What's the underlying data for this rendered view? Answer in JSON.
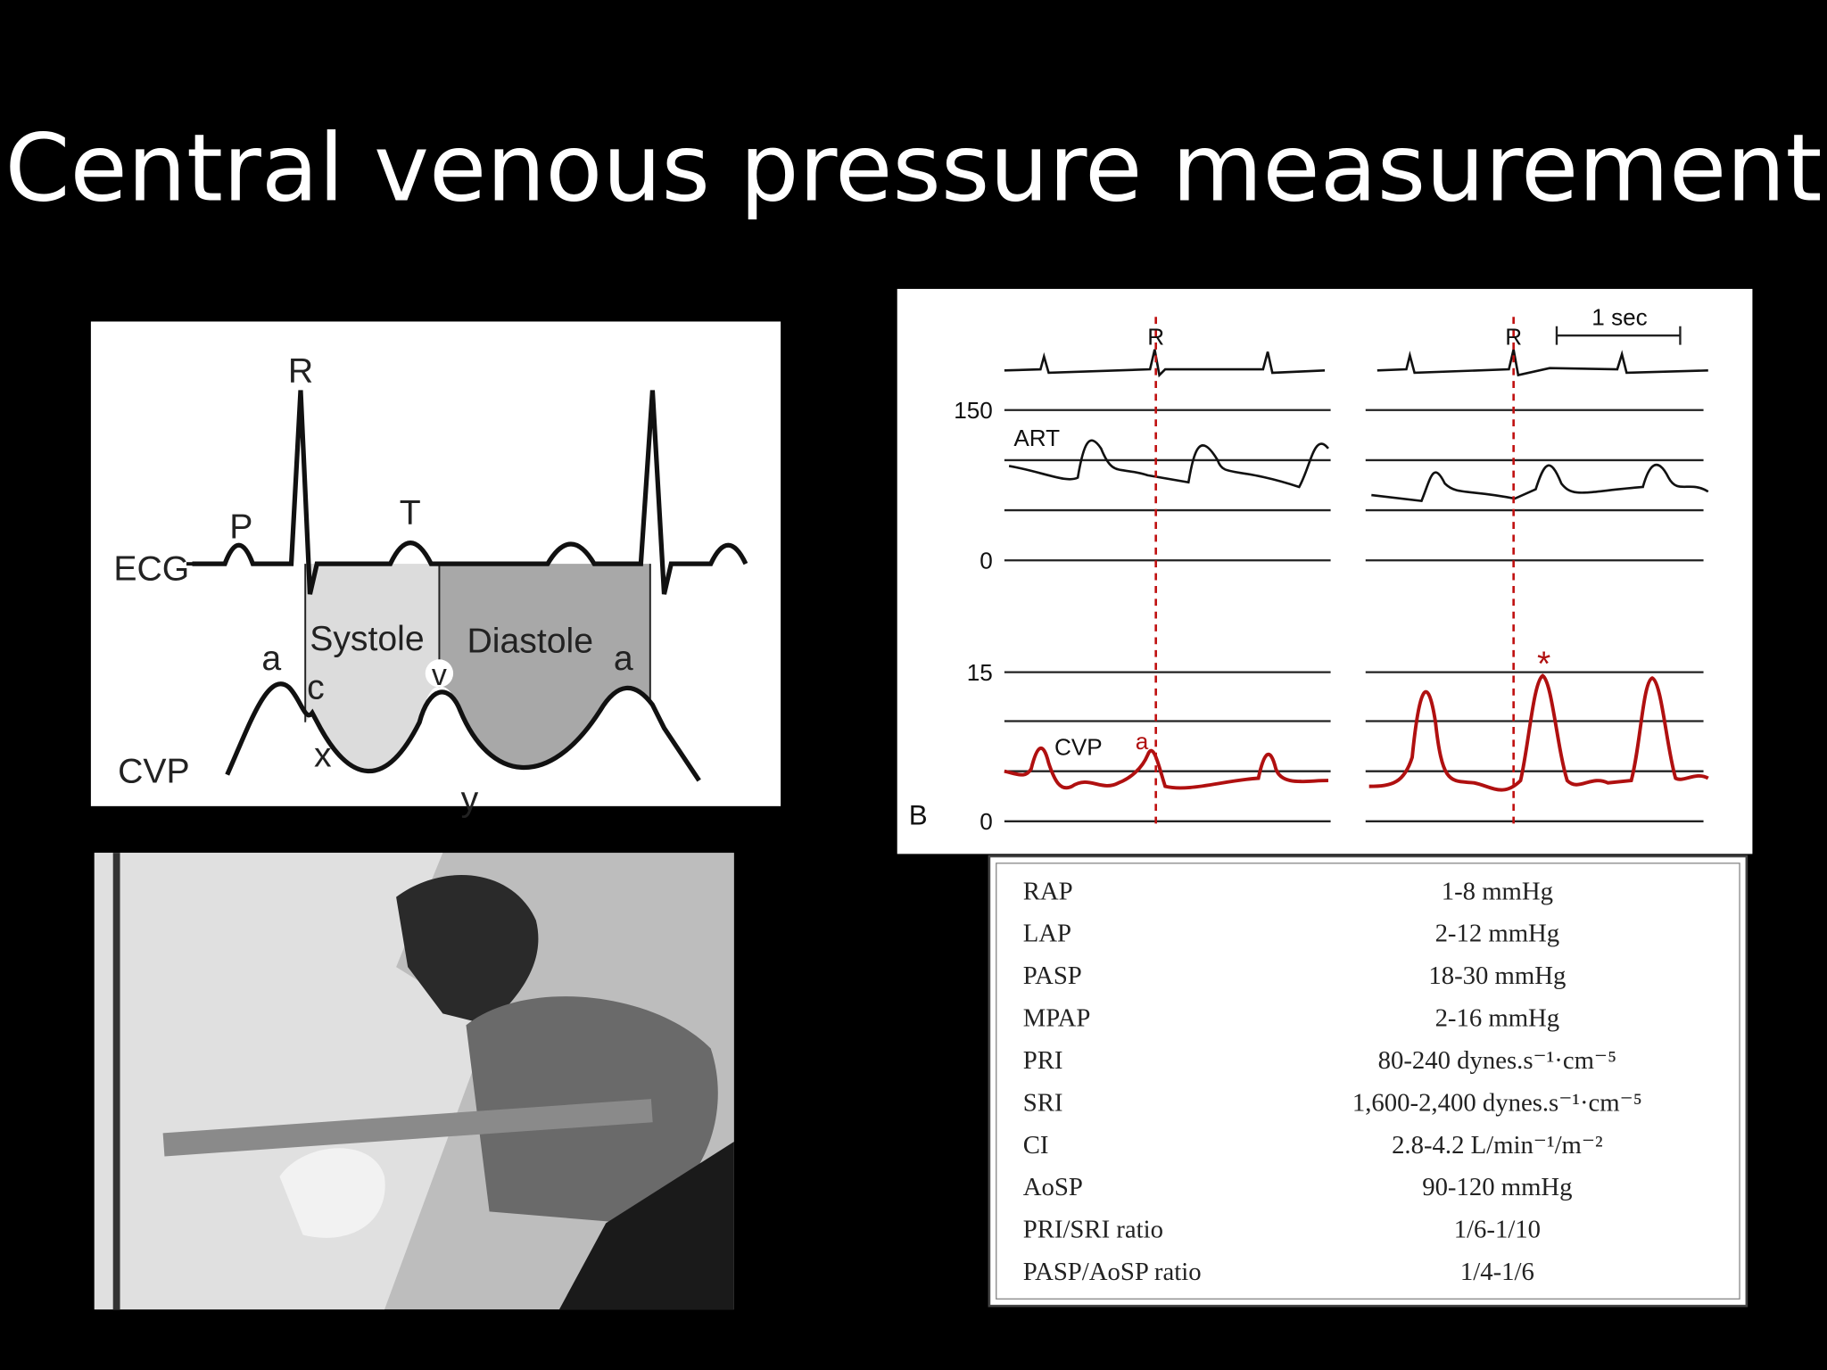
{
  "title": "Central venous pressure measurement",
  "ecg_diagram": {
    "r": "R",
    "p": "P",
    "t": "T",
    "ecg": "ECG",
    "systole": "Systole",
    "diastole": "Diastole",
    "a1": "a",
    "c": "c",
    "v": "v",
    "x": "x",
    "y": "y",
    "a2": "a",
    "cvp": "CVP"
  },
  "waveform_panel": {
    "r_left": "R",
    "r_right": "R",
    "time_scale": "1 sec",
    "tick_150": "150",
    "art": "ART",
    "tick_0_top": "0",
    "tick_15": "15",
    "cvp": "CVP",
    "a": "a",
    "tick_0_bottom": "0",
    "panel": "B",
    "star": "*"
  },
  "table": {
    "rows": [
      [
        "RAP",
        "1-8 mmHg"
      ],
      [
        "LAP",
        "2-12 mmHg"
      ],
      [
        "PASP",
        "18-30 mmHg"
      ],
      [
        "MPAP",
        "2-16 mmHg"
      ],
      [
        "PRI",
        "80-240 dynes.s⁻¹·cm⁻⁵"
      ],
      [
        "SRI",
        "1,600-2,400 dynes.s⁻¹·cm⁻⁵"
      ],
      [
        "CI",
        "2.8-4.2 L/min⁻¹/m⁻²"
      ],
      [
        "AoSP",
        "90-120 mmHg"
      ],
      [
        "PRI/SRI ratio",
        "1/6-1/10"
      ],
      [
        "PASP/AoSP ratio",
        "1/4-1/6"
      ]
    ]
  }
}
